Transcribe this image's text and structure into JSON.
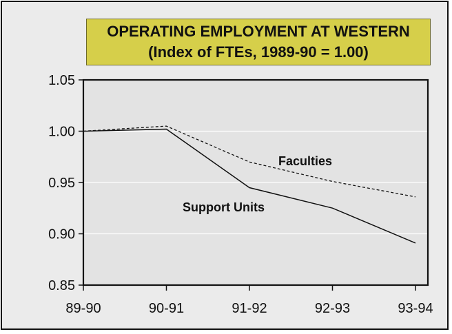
{
  "chart_data": {
    "type": "line",
    "title": "OPERATING EMPLOYMENT AT WESTERN",
    "subtitle": "(Index of FTEs, 1989-90 = 1.00)",
    "categories": [
      "89-90",
      "90-91",
      "91-92",
      "92-93",
      "93-94"
    ],
    "series": [
      {
        "name": "Faculties",
        "values": [
          1.0,
          1.005,
          0.97,
          0.951,
          0.936
        ],
        "style": "dashed"
      },
      {
        "name": "Support Units",
        "values": [
          1.0,
          1.002,
          0.945,
          0.925,
          0.891
        ],
        "style": "solid"
      }
    ],
    "ylim": [
      0.85,
      1.05
    ],
    "yticks": [
      "1.05",
      "1.00",
      "0.95",
      "0.90",
      "0.85"
    ],
    "xlabel": "",
    "ylabel": "",
    "grid": true,
    "colors": {
      "background": "#ebebeb",
      "title_box": "#d6cf4a",
      "line": "#111111"
    }
  }
}
